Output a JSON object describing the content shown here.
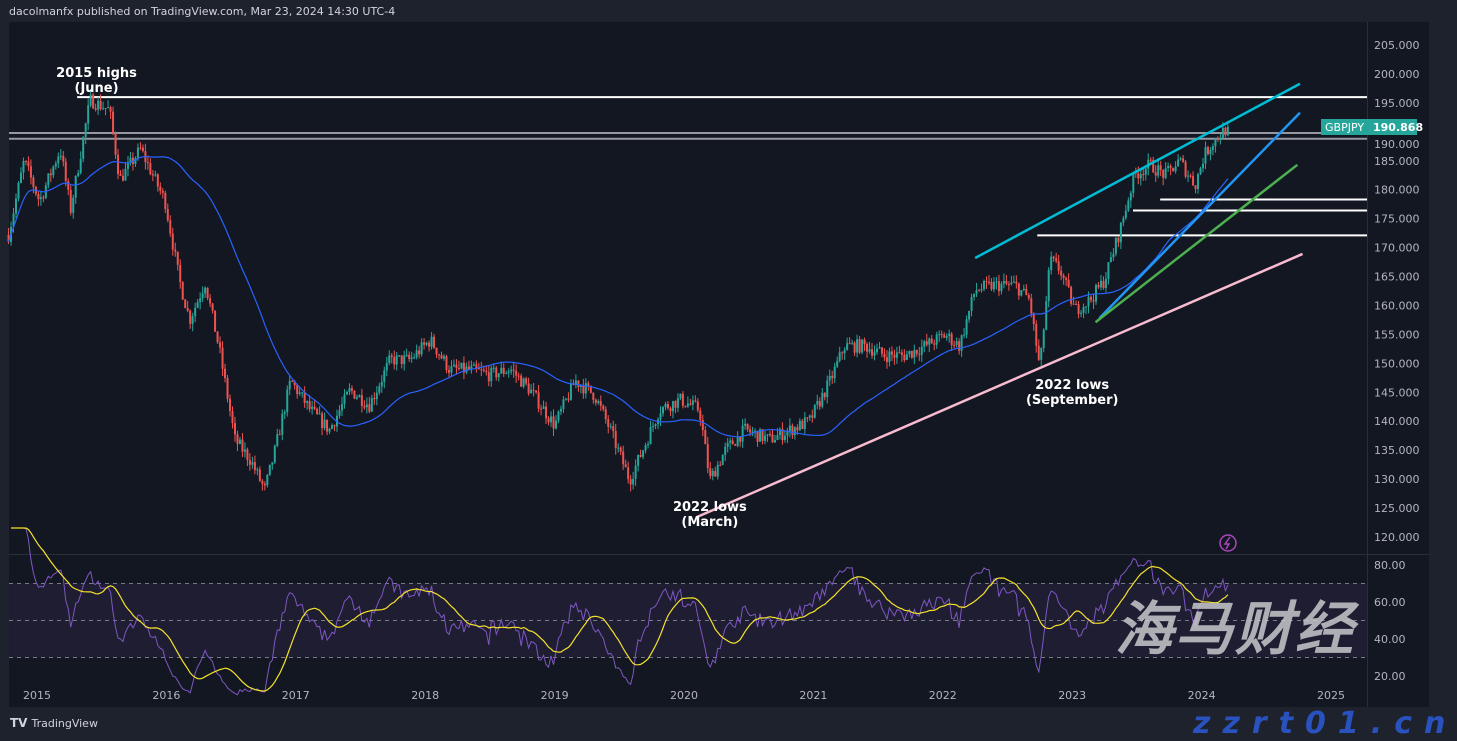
{
  "header": {
    "publisher": "dacolmanfx published on TradingView.com, Mar 23, 2024 14:30 UTC-4"
  },
  "footer": {
    "logo_text": "TradingView"
  },
  "watermark": {
    "text": "海马财经",
    "site": "zzrt01.cn"
  },
  "symbol": {
    "name": "GBPJPY",
    "last": "190.868",
    "color": "#26a69a"
  },
  "colors": {
    "background": "#131722",
    "up": "#26a69a",
    "down": "#ef5350",
    "ma": "#2962ff",
    "rsi": "#7e57c2",
    "rsi_ma": "#f5e22b",
    "pink": "#f8bbd0",
    "cyan": "#00bcd4",
    "blue": "#2196f3",
    "green": "#4caf50"
  },
  "chart_data": {
    "type": "candlestick",
    "timeframe": "weekly",
    "x_ticks": [
      "2015",
      "2016",
      "2017",
      "2018",
      "2019",
      "2020",
      "2021",
      "2022",
      "2023",
      "2024",
      "2025"
    ],
    "y_ticks": [
      "205.000",
      "200.000",
      "195.000",
      "190.000",
      "185.000",
      "180.000",
      "175.000",
      "170.000",
      "165.000",
      "160.000",
      "155.000",
      "150.000",
      "145.000",
      "140.000",
      "135.000",
      "130.000",
      "125.000",
      "120.000"
    ],
    "ylim": [
      120,
      205
    ],
    "price_path": [
      [
        2014.78,
        172.2
      ],
      [
        2014.9,
        185
      ],
      [
        2015.02,
        178
      ],
      [
        2015.18,
        187
      ],
      [
        2015.26,
        176.5
      ],
      [
        2015.41,
        195.5
      ],
      [
        2015.56,
        193.8
      ],
      [
        2015.64,
        181.7
      ],
      [
        2015.8,
        187
      ],
      [
        2015.99,
        178
      ],
      [
        2016.1,
        164.4
      ],
      [
        2016.18,
        157.5
      ],
      [
        2016.3,
        164
      ],
      [
        2016.41,
        152.3
      ],
      [
        2016.53,
        136.8
      ],
      [
        2016.65,
        133.3
      ],
      [
        2016.76,
        128.1
      ],
      [
        2016.84,
        135
      ],
      [
        2016.96,
        147
      ],
      [
        2017.11,
        142
      ],
      [
        2017.26,
        138.5
      ],
      [
        2017.42,
        145.4
      ],
      [
        2017.57,
        142.8
      ],
      [
        2017.73,
        150.6
      ],
      [
        2017.88,
        150.6
      ],
      [
        2018.04,
        154
      ],
      [
        2018.19,
        148.9
      ],
      [
        2018.35,
        148.9
      ],
      [
        2018.5,
        148
      ],
      [
        2018.66,
        149
      ],
      [
        2018.81,
        145.4
      ],
      [
        2019.0,
        139.3
      ],
      [
        2019.16,
        147
      ],
      [
        2019.31,
        144.5
      ],
      [
        2019.43,
        138.5
      ],
      [
        2019.58,
        129.8
      ],
      [
        2019.7,
        136
      ],
      [
        2019.81,
        142
      ],
      [
        2019.97,
        143.7
      ],
      [
        2020.12,
        142
      ],
      [
        2020.2,
        129.8
      ],
      [
        2020.32,
        135
      ],
      [
        2020.47,
        138.5
      ],
      [
        2020.66,
        136.8
      ],
      [
        2020.82,
        138.5
      ],
      [
        2020.97,
        140
      ],
      [
        2021.13,
        147
      ],
      [
        2021.24,
        153
      ],
      [
        2021.4,
        153
      ],
      [
        2021.55,
        151.4
      ],
      [
        2021.71,
        151.4
      ],
      [
        2021.86,
        153
      ],
      [
        2022.02,
        154.9
      ],
      [
        2022.13,
        153
      ],
      [
        2022.25,
        162.7
      ],
      [
        2022.4,
        163.5
      ],
      [
        2022.56,
        163.5
      ],
      [
        2022.67,
        161
      ],
      [
        2022.75,
        149
      ],
      [
        2022.83,
        167.9
      ],
      [
        2022.91,
        166
      ],
      [
        2023.02,
        159.2
      ],
      [
        2023.14,
        161
      ],
      [
        2023.25,
        164.4
      ],
      [
        2023.37,
        173
      ],
      [
        2023.48,
        182.5
      ],
      [
        2023.6,
        184.3
      ],
      [
        2023.72,
        182.5
      ],
      [
        2023.83,
        185
      ],
      [
        2023.95,
        180.8
      ],
      [
        2024.02,
        186
      ],
      [
        2024.1,
        188.6
      ],
      [
        2024.18,
        190.3
      ],
      [
        2024.22,
        190.868
      ]
    ],
    "indicators": {
      "moving_average": "50-period SMA",
      "rsi": {
        "period": 14,
        "levels": [
          70,
          50,
          30
        ],
        "ticks": [
          "80.00",
          "60.00",
          "40.00",
          "20.00"
        ],
        "ylim": [
          10,
          85
        ]
      }
    },
    "horizontal_levels": [
      {
        "price": 196.0,
        "from": 2015.31,
        "color": "#ffffff"
      },
      {
        "price": 189.8,
        "from": 2014.78,
        "color": "#9598a1"
      },
      {
        "price": 188.8,
        "from": 2014.78,
        "color": "#9598a1"
      },
      {
        "price": 178.3,
        "from": 2023.68,
        "color": "#ffffff"
      },
      {
        "price": 176.4,
        "from": 2023.47,
        "color": "#ffffff"
      },
      {
        "price": 172.1,
        "from": 2022.73,
        "color": "#ffffff"
      }
    ],
    "trendlines": [
      {
        "from": [
          2020.1,
          123.45
        ],
        "to": [
          2024.78,
          168.9
        ],
        "color": "#f8bbd0"
      },
      {
        "from": [
          2022.25,
          168.2
        ],
        "to": [
          2024.76,
          198.3
        ],
        "color": "#00bcd4"
      },
      {
        "from": [
          2023.21,
          157.8
        ],
        "to": [
          2024.76,
          193.3
        ],
        "color": "#2196f3"
      },
      {
        "from": [
          2023.18,
          157.1
        ],
        "to": [
          2024.74,
          184.3
        ],
        "color": "#4caf50"
      }
    ],
    "annotations": [
      {
        "line1": "2015 highs",
        "line2": "(June)",
        "at": [
          2015.46,
          199.5
        ]
      },
      {
        "line1": "2022 lows",
        "line2": "(March)",
        "at": [
          2020.2,
          124.5
        ]
      },
      {
        "line1": "2022 lows",
        "line2": "(September)",
        "at": [
          2023.0,
          145.6
        ]
      }
    ]
  }
}
